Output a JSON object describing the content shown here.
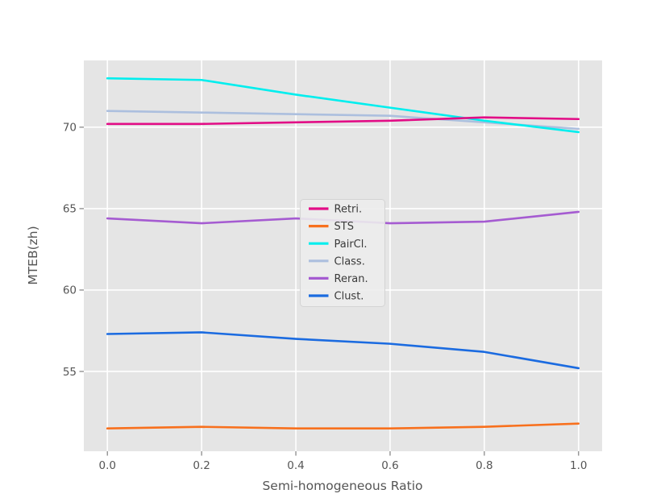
{
  "chart_data": {
    "type": "line",
    "title": "",
    "xlabel": "Semi-homogeneous Ratio",
    "ylabel": "MTEB(zh)",
    "x": [
      0.0,
      0.2,
      0.4,
      0.6,
      0.8,
      1.0
    ],
    "series": [
      {
        "name": "Retri.",
        "color": "#e20d86",
        "values": [
          70.2,
          70.2,
          70.3,
          70.4,
          70.6,
          70.5
        ]
      },
      {
        "name": "STS",
        "color": "#f8701d",
        "values": [
          51.5,
          51.6,
          51.5,
          51.5,
          51.6,
          51.8
        ]
      },
      {
        "name": "PairCl.",
        "color": "#00eeee",
        "values": [
          73.0,
          72.9,
          72.0,
          71.2,
          70.4,
          69.7
        ]
      },
      {
        "name": "Class.",
        "color": "#acbfde",
        "values": [
          71.0,
          70.9,
          70.8,
          70.7,
          70.3,
          69.9
        ]
      },
      {
        "name": "Reran.",
        "color": "#a55bd1",
        "values": [
          64.4,
          64.1,
          64.4,
          64.1,
          64.2,
          64.8
        ]
      },
      {
        "name": "Clust.",
        "color": "#1b6be0",
        "values": [
          57.3,
          57.4,
          57.0,
          56.7,
          56.2,
          55.2
        ]
      }
    ],
    "draw_order": [
      "Class.",
      "Reran.",
      "Clust.",
      "STS",
      "PairCl.",
      "Retri."
    ],
    "xticks": {
      "values": [
        0.0,
        0.2,
        0.4,
        0.6,
        0.8,
        1.0
      ],
      "labels": [
        "0.0",
        "0.2",
        "0.4",
        "0.6",
        "0.8",
        "1.0"
      ]
    },
    "yticks": {
      "values": [
        55,
        60,
        65,
        70
      ],
      "labels": [
        "55",
        "60",
        "65",
        "70"
      ]
    },
    "xlim": [
      -0.05,
      1.05
    ],
    "ylim": [
      50.1,
      74.1
    ],
    "grid": true,
    "legend_position": "center-left-inside",
    "legend_entries": [
      "Retri.",
      "STS",
      "PairCl.",
      "Class.",
      "Reran.",
      "Clust."
    ]
  },
  "style": {
    "plot_background": "#e5e5e5",
    "gridline_color": "#ffffff",
    "tick_color": "#8a8a8a",
    "tick_label_color": "#555555",
    "axis_label_color": "#555555",
    "legend_background": "#ececec",
    "legend_border": "#d4d4d4",
    "legend_text_color": "#3a3a3a"
  }
}
